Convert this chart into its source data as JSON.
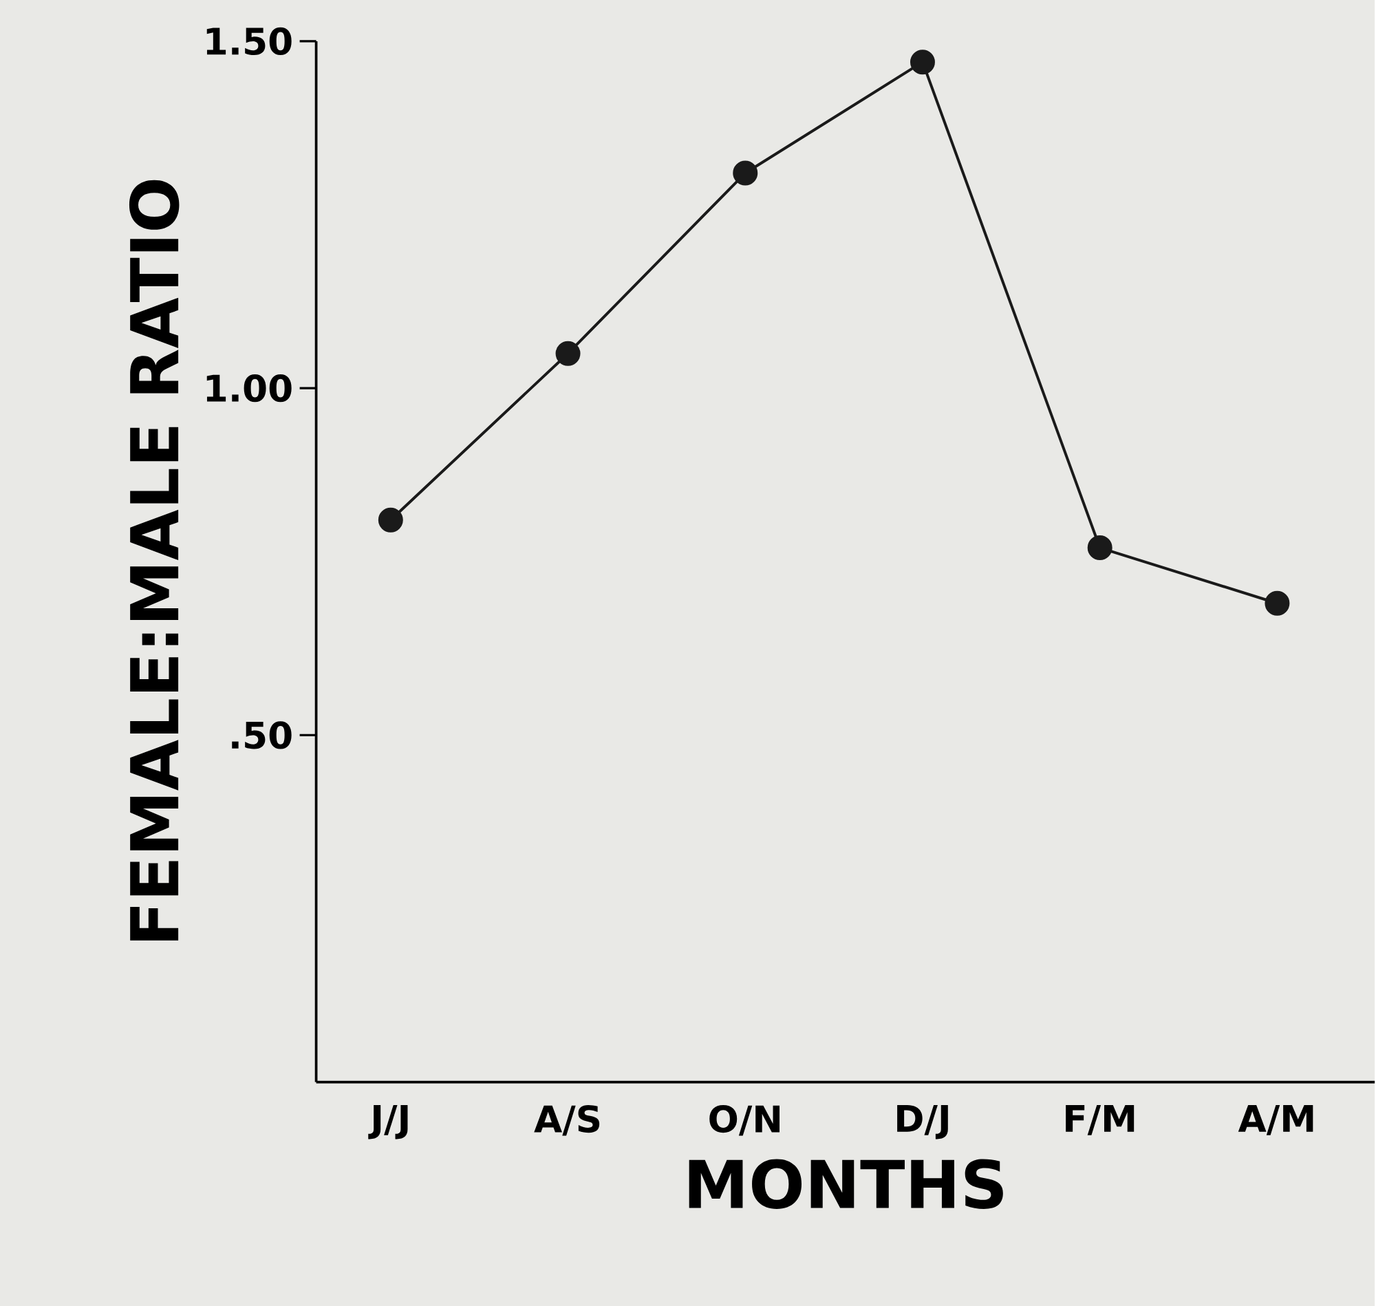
{
  "chart_data": {
    "type": "line",
    "xlabel": "MONTHS",
    "ylabel": "FEMALE:MALE RATIO",
    "categories": [
      "J/J",
      "A/S",
      "O/N",
      "D/J",
      "F/M",
      "A/M"
    ],
    "values": [
      0.81,
      1.05,
      1.31,
      1.47,
      0.77,
      0.69
    ],
    "color": "#1a1a1a",
    "marker": "circle",
    "line_style": "solid",
    "ylim": [
      0,
      1.5
    ],
    "yticks": [
      {
        "value": 0.5,
        "label": ".50"
      },
      {
        "value": 1.0,
        "label": "1.00"
      },
      {
        "value": 1.5,
        "label": "1.50"
      }
    ]
  }
}
